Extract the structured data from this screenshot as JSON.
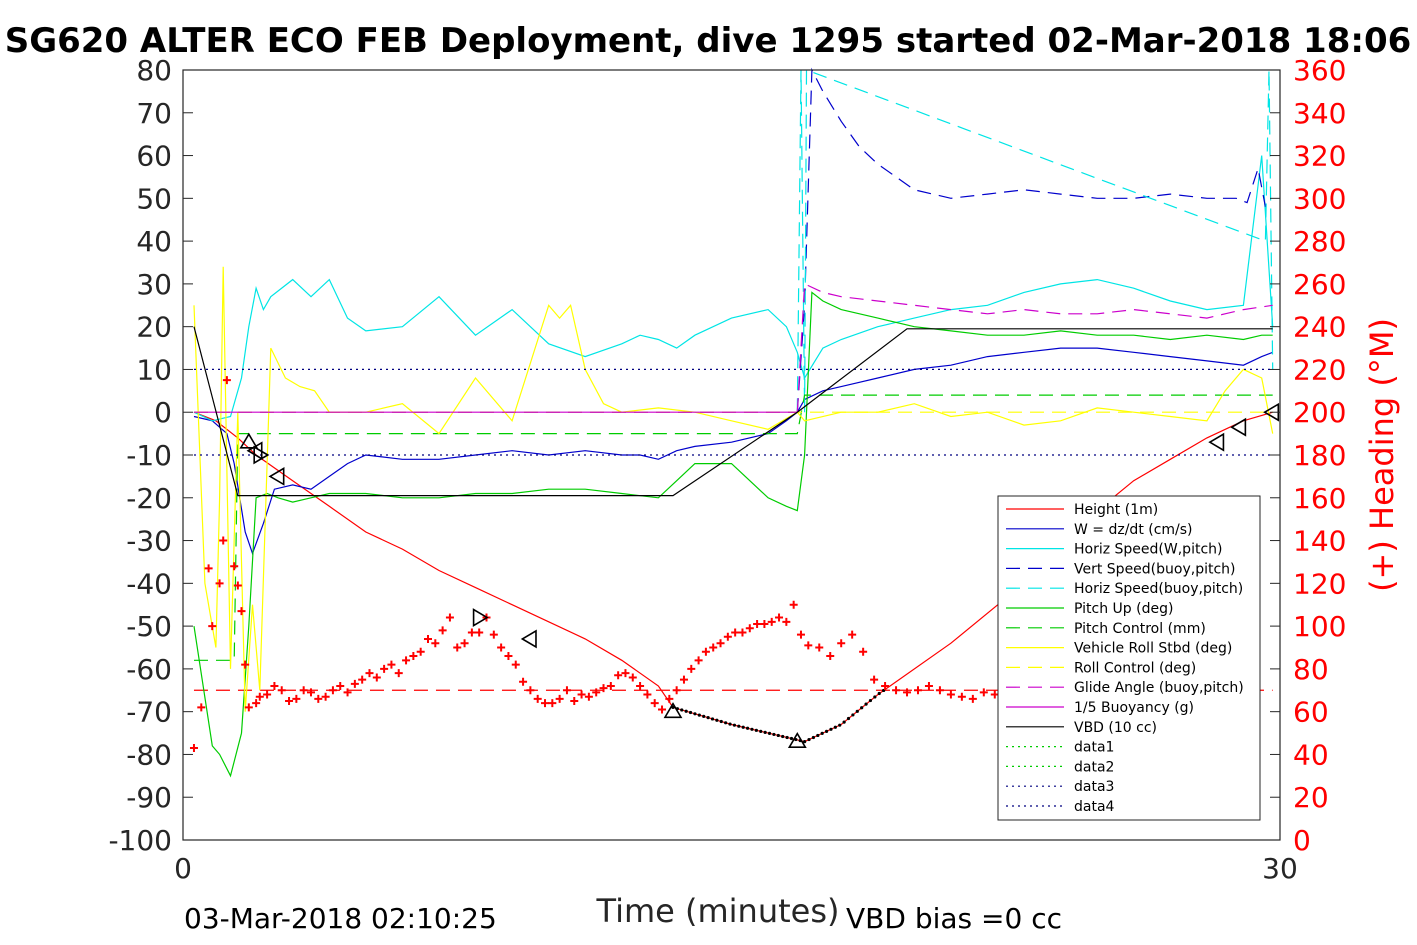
{
  "title": "SG620 ALTER ECO FEB Deployment, dive 1295 started 02-Mar-2018 18:06",
  "footer_left": "03-Mar-2018 02:10:25",
  "footer_right": "VBD bias =0 cc",
  "chart_data": {
    "type": "line",
    "xlabel": "Time (minutes)",
    "ylabel_right": "(+) Heading (°M)",
    "xlim": [
      0,
      30
    ],
    "ylim": [
      -100,
      80
    ],
    "ylim_right": [
      0,
      360
    ],
    "x_ticks": [
      0,
      30
    ],
    "y_ticks": [
      80,
      70,
      60,
      50,
      40,
      30,
      20,
      10,
      0,
      -10,
      -20,
      -30,
      -40,
      -50,
      -60,
      -70,
      -80,
      -90,
      -100
    ],
    "y_ticks_right": [
      360,
      340,
      320,
      300,
      280,
      260,
      240,
      220,
      200,
      180,
      160,
      140,
      120,
      100,
      80,
      60,
      40,
      20,
      0
    ],
    "grid": false,
    "legend_position": "lower-right",
    "colors": {
      "red": "#ff0000",
      "blue": "#0000cc",
      "cyan": "#00e5e5",
      "green": "#00cc00",
      "yellow": "#ffff00",
      "magenta": "#cc00cc",
      "purple": "#8833ff",
      "black": "#000000",
      "navy": "#000080"
    },
    "series": [
      {
        "name": "Height (1m)",
        "color": "#ff0000",
        "dash": "",
        "x": [
          0.3,
          0.9,
          1.5,
          2.0,
          3.0,
          4.0,
          5.0,
          6.0,
          7.0,
          8.0,
          9.0,
          10.0,
          11.0,
          12.0,
          13.0,
          13.4,
          15.0,
          17.0,
          18.0,
          19.0,
          21.0,
          23.0,
          24.0,
          25.0,
          26.0,
          27.0,
          28.0,
          29.0,
          29.8
        ],
        "y": [
          0,
          -2,
          -6,
          -10,
          -16,
          -22,
          -28,
          -32,
          -37,
          -41,
          -45,
          -49,
          -53,
          -58,
          -64,
          -69,
          -73,
          -77,
          -73,
          -66,
          -54,
          -40,
          -32,
          -23,
          -16,
          -11,
          -6,
          -2,
          0
        ]
      },
      {
        "name": "W = dz/dt (cm/s)",
        "color": "#0000cc",
        "dash": "",
        "x": [
          0.3,
          0.8,
          1.2,
          1.4,
          1.7,
          1.9,
          2.2,
          2.5,
          3.0,
          3.5,
          4.0,
          4.5,
          5.0,
          6.0,
          7.0,
          8.0,
          9.0,
          10.0,
          11.0,
          12.0,
          12.5,
          13.0,
          13.5,
          14.0,
          15.0,
          16.0,
          16.5,
          16.8,
          17.0,
          17.5,
          18.0,
          19.0,
          20.0,
          21.0,
          22.0,
          23.0,
          24.0,
          25.0,
          26.0,
          27.0,
          28.0,
          29.0,
          29.5,
          29.8
        ],
        "y": [
          -1,
          -2,
          -5,
          -12,
          -28,
          -33,
          -26,
          -18,
          -17,
          -18,
          -15,
          -12,
          -10,
          -11,
          -11,
          -10,
          -9,
          -10,
          -9,
          -10,
          -10,
          -11,
          -9,
          -8,
          -7,
          -5,
          -2,
          0,
          3,
          5,
          6,
          8,
          10,
          11,
          13,
          14,
          15,
          15,
          14,
          13,
          12,
          11,
          13,
          14
        ]
      },
      {
        "name": "Horiz Speed(W,pitch)",
        "color": "#00e5e5",
        "dash": "",
        "x": [
          0.3,
          0.8,
          1.3,
          1.6,
          1.8,
          2.0,
          2.2,
          2.4,
          3.0,
          3.5,
          4.0,
          4.5,
          5.0,
          6.0,
          7.0,
          8.0,
          9.0,
          10.0,
          11.0,
          12.0,
          12.5,
          13.0,
          13.5,
          14.0,
          15.0,
          16.0,
          16.5,
          16.8,
          17.0,
          17.5,
          18.0,
          19.0,
          20.0,
          21.0,
          22.0,
          23.0,
          24.0,
          25.0,
          26.0,
          27.0,
          28.0,
          29.0,
          29.5,
          29.8
        ],
        "y": [
          0,
          -2,
          -1,
          8,
          20,
          29,
          24,
          27,
          31,
          27,
          31,
          22,
          19,
          20,
          27,
          18,
          24,
          16,
          13,
          16,
          18,
          17,
          15,
          18,
          22,
          24,
          20,
          14,
          8,
          15,
          17,
          20,
          22,
          24,
          25,
          28,
          30,
          31,
          29,
          26,
          24,
          25,
          60,
          20
        ]
      },
      {
        "name": "Vert Speed(buoy,pitch)",
        "color": "#0000cc",
        "dash": "14,8",
        "x": [
          16.8,
          17.0,
          17.2,
          17.5,
          18.0,
          18.5,
          19.0,
          20.0,
          21.0,
          22.0,
          23.0,
          24.0,
          25.0,
          26.0,
          27.0,
          28.0,
          28.8,
          29.1,
          29.4,
          29.6
        ],
        "y": [
          0,
          25,
          80,
          75,
          68,
          62,
          58,
          52,
          50,
          51,
          52,
          51,
          50,
          50,
          51,
          50,
          50,
          49,
          57,
          48
        ]
      },
      {
        "name": "Horiz Speed(buoy,pitch)",
        "color": "#00e5e5",
        "dash": "14,8",
        "x": [
          16.8,
          16.9,
          17.0,
          17.05,
          29.6,
          29.7,
          29.8
        ],
        "y": [
          0,
          80,
          0,
          80,
          40,
          80,
          10
        ]
      },
      {
        "name": "Pitch Up (deg)",
        "color": "#00cc00",
        "dash": "",
        "x": [
          0.3,
          0.8,
          1.0,
          1.3,
          1.6,
          1.8,
          2.0,
          2.3,
          2.6,
          3.0,
          3.5,
          4.0,
          5.0,
          6.0,
          7.0,
          8.0,
          9.0,
          10.0,
          11.0,
          12.0,
          13.0,
          13.5,
          14.0,
          15.0,
          15.5,
          16.0,
          16.5,
          16.8,
          17.0,
          17.2,
          17.5,
          18.0,
          19.0,
          20.0,
          21.0,
          22.0,
          23.0,
          24.0,
          25.0,
          26.0,
          27.0,
          28.0,
          29.0,
          29.5,
          29.8
        ],
        "y": [
          -50,
          -78,
          -80,
          -85,
          -75,
          -50,
          -20,
          -19,
          -20,
          -21,
          -20,
          -19,
          -19,
          -20,
          -20,
          -19,
          -19,
          -18,
          -18,
          -19,
          -20,
          -16,
          -12,
          -12,
          -16,
          -20,
          -22,
          -23,
          -10,
          28,
          26,
          24,
          22,
          20,
          19,
          18,
          18,
          19,
          18,
          18,
          17,
          18,
          17,
          18,
          18
        ]
      },
      {
        "name": "Pitch Control (mm)",
        "color": "#00cc00",
        "dash": "14,8",
        "x": [
          0.3,
          1.4,
          1.5,
          16.8,
          17.0,
          29.8
        ],
        "y": [
          -58,
          -58,
          -5,
          -5,
          4,
          4
        ]
      },
      {
        "name": "Vehicle Roll Stbd (deg)",
        "color": "#ffff00",
        "dash": "",
        "x": [
          0.3,
          0.6,
          0.9,
          1.0,
          1.1,
          1.3,
          1.5,
          1.7,
          1.9,
          2.1,
          2.4,
          2.8,
          3.2,
          3.6,
          4.0,
          5.0,
          6.0,
          7.0,
          8.0,
          9.0,
          10.0,
          10.3,
          10.6,
          11.0,
          11.5,
          12.0,
          13.0,
          14.0,
          15.0,
          16.0,
          16.8,
          17.0,
          18.0,
          19.0,
          20.0,
          21.0,
          22.0,
          23.0,
          24.0,
          25.0,
          26.0,
          27.0,
          28.0,
          28.5,
          29.0,
          29.5,
          29.8
        ],
        "y": [
          25,
          -40,
          -55,
          -20,
          34,
          -60,
          0,
          -70,
          -45,
          -65,
          15,
          8,
          6,
          5,
          0,
          0,
          2,
          -5,
          8,
          -2,
          25,
          22,
          25,
          10,
          2,
          0,
          1,
          0,
          -2,
          -4,
          0,
          -2,
          0,
          0,
          2,
          -1,
          0,
          -3,
          -2,
          1,
          0,
          -1,
          -2,
          5,
          10,
          8,
          -5
        ]
      },
      {
        "name": "Roll Control (deg)",
        "color": "#ffff00",
        "dash": "14,8",
        "x": [
          0.3,
          29.8
        ],
        "y": [
          0,
          0
        ]
      },
      {
        "name": "Glide Angle (buoy,pitch)",
        "color": "#cc00cc",
        "dash": "14,8",
        "x": [
          16.8,
          17.0,
          17.5,
          18.0,
          19.0,
          20.0,
          21.0,
          22.0,
          23.0,
          24.0,
          25.0,
          26.0,
          27.0,
          28.0,
          28.5,
          29.0,
          29.8
        ],
        "y": [
          0,
          30,
          28,
          27,
          26,
          25,
          24,
          23,
          24,
          23,
          23,
          24,
          23,
          22,
          23,
          24,
          25
        ]
      },
      {
        "name": "1/5 Buoyancy (g)",
        "color": "#cc00cc",
        "dash": "",
        "x": [
          0.3,
          16.8
        ],
        "y": [
          0,
          0
        ]
      },
      {
        "name": "VBD (10 cc)",
        "color": "#000000",
        "dash": "",
        "x": [
          0.3,
          1.5,
          13.4,
          16.8,
          19.8,
          29.8
        ],
        "y": [
          20,
          -19.5,
          -19.5,
          0,
          19.5,
          19.5
        ]
      },
      {
        "name": "data1",
        "color": "#00cc00",
        "dash": "2,4",
        "x": [
          0,
          0
        ],
        "y": [
          0,
          0
        ]
      },
      {
        "name": "data2",
        "color": "#00cc00",
        "dash": "2,4",
        "x": [
          0,
          0
        ],
        "y": [
          0,
          0
        ]
      },
      {
        "name": "data3",
        "color": "#000080",
        "dash": "2,4",
        "x": [
          0.3,
          29.8
        ],
        "y": [
          10,
          10
        ]
      },
      {
        "name": "data4",
        "color": "#000080",
        "dash": "2,4",
        "x": [
          0.3,
          29.8
        ],
        "y": [
          -10,
          -10
        ]
      }
    ],
    "purple_zero_line": {
      "color": "#8833ff",
      "x": [
        0.3,
        16.8
      ],
      "y": [
        0,
        0
      ]
    },
    "heading_mean_line": {
      "color": "#ff0000",
      "y_right": 70,
      "x": [
        0.3,
        29.8
      ]
    },
    "heading_points": {
      "color": "#ff0000",
      "x": [
        0.3,
        0.5,
        0.7,
        0.8,
        1.0,
        1.1,
        1.2,
        1.4,
        1.5,
        1.6,
        1.7,
        1.8,
        2.0,
        2.1,
        2.3,
        2.5,
        2.7,
        2.9,
        3.1,
        3.3,
        3.5,
        3.7,
        3.9,
        4.1,
        4.3,
        4.5,
        4.7,
        4.9,
        5.1,
        5.3,
        5.5,
        5.7,
        5.9,
        6.1,
        6.3,
        6.5,
        6.7,
        6.9,
        7.1,
        7.3,
        7.5,
        7.7,
        7.9,
        8.1,
        8.3,
        8.5,
        8.7,
        8.9,
        9.1,
        9.3,
        9.5,
        9.7,
        9.9,
        10.1,
        10.3,
        10.5,
        10.7,
        10.9,
        11.1,
        11.3,
        11.5,
        11.7,
        11.9,
        12.1,
        12.3,
        12.5,
        12.7,
        12.9,
        13.1,
        13.3,
        13.5,
        13.7,
        13.9,
        14.1,
        14.3,
        14.5,
        14.7,
        14.9,
        15.1,
        15.3,
        15.5,
        15.7,
        15.9,
        16.1,
        16.3,
        16.5,
        16.7,
        16.9,
        17.1,
        17.4,
        17.7,
        18.0,
        18.3,
        18.6,
        18.9,
        19.2,
        19.5,
        19.8,
        20.1,
        20.4,
        20.7,
        21.0,
        21.3,
        21.6,
        21.9,
        22.2,
        22.5,
        22.8,
        23.1,
        23.4,
        23.7,
        24.0,
        24.3,
        24.6,
        24.9,
        25.2,
        25.5,
        25.8,
        26.1,
        26.4,
        26.7,
        27.0,
        27.3,
        27.6,
        27.9,
        28.2,
        28.5,
        28.8,
        29.1
      ],
      "heading": [
        43,
        62,
        127,
        100,
        120,
        140,
        215,
        128,
        119,
        107,
        82,
        62,
        64,
        67,
        68,
        72,
        70,
        65,
        66,
        70,
        69,
        66,
        67,
        70,
        72,
        69,
        73,
        75,
        78,
        76,
        80,
        82,
        78,
        84,
        86,
        88,
        94,
        92,
        98,
        104,
        90,
        92,
        97,
        97,
        104,
        96,
        90,
        86,
        82,
        74,
        70,
        66,
        64,
        64,
        66,
        70,
        65,
        68,
        67,
        69,
        71,
        72,
        77,
        78,
        76,
        72,
        68,
        64,
        61,
        66,
        70,
        75,
        80,
        84,
        88,
        90,
        92,
        95,
        97,
        97,
        99,
        101,
        101,
        102,
        104,
        102,
        110,
        96,
        91,
        90,
        86,
        92,
        96,
        88,
        75,
        72,
        70,
        69,
        70,
        72,
        70,
        68,
        67,
        66,
        69,
        68,
        70,
        70,
        68,
        67,
        66,
        65,
        66,
        68,
        67,
        66,
        63,
        62,
        64,
        63,
        65,
        68,
        70,
        66,
        56,
        52,
        60,
        62,
        65,
        68,
        66
      ]
    },
    "triangle_markers": [
      {
        "x": 1.8,
        "y": -7,
        "dir": "up"
      },
      {
        "x": 2.0,
        "y": -9,
        "dir": "left"
      },
      {
        "x": 2.1,
        "y": -10,
        "dir": "right"
      },
      {
        "x": 2.6,
        "y": -15,
        "dir": "left"
      },
      {
        "x": 8.1,
        "y": -48,
        "dir": "right"
      },
      {
        "x": 9.5,
        "y": -53,
        "dir": "left"
      },
      {
        "x": 13.4,
        "y": -70,
        "dir": "up"
      },
      {
        "x": 16.8,
        "y": -77,
        "dir": "up"
      },
      {
        "x": 28.3,
        "y": -7,
        "dir": "left"
      },
      {
        "x": 28.9,
        "y": -3.5,
        "dir": "left"
      },
      {
        "x": 29.8,
        "y": 0,
        "dir": "left"
      }
    ],
    "black_dot_segment": {
      "x0": 13.4,
      "x1": 19.2
    }
  }
}
